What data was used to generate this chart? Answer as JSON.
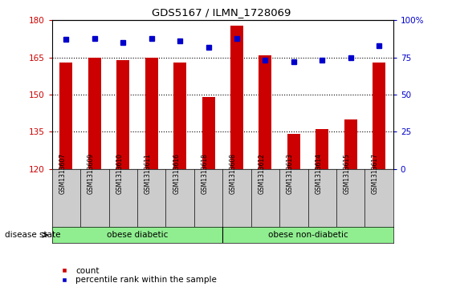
{
  "title": "GDS5167 / ILMN_1728069",
  "samples": [
    "GSM1313607",
    "GSM1313609",
    "GSM1313610",
    "GSM1313611",
    "GSM1313616",
    "GSM1313618",
    "GSM1313608",
    "GSM1313612",
    "GSM1313613",
    "GSM1313614",
    "GSM1313615",
    "GSM1313617"
  ],
  "counts": [
    163,
    165,
    164,
    165,
    163,
    149,
    178,
    166,
    134,
    136,
    140,
    163
  ],
  "percentiles": [
    87,
    88,
    85,
    88,
    86,
    82,
    88,
    73,
    72,
    73,
    75,
    83
  ],
  "ylim_left": [
    120,
    180
  ],
  "ylim_right": [
    0,
    100
  ],
  "yticks_left": [
    120,
    135,
    150,
    165,
    180
  ],
  "yticks_right": [
    0,
    25,
    50,
    75,
    100
  ],
  "bar_color": "#cc0000",
  "dot_color": "#0000cc",
  "bar_width": 0.45,
  "group1_label": "obese diabetic",
  "group2_label": "obese non-diabetic",
  "group1_count": 6,
  "group2_count": 6,
  "disease_state_label": "disease state",
  "legend_count_label": "count",
  "legend_percentile_label": "percentile rank within the sample",
  "group_color": "#90EE90",
  "tick_area_color": "#cccccc",
  "background_color": "#ffffff",
  "right_tick_labels": [
    "0",
    "25",
    "50",
    "75",
    "100%"
  ]
}
